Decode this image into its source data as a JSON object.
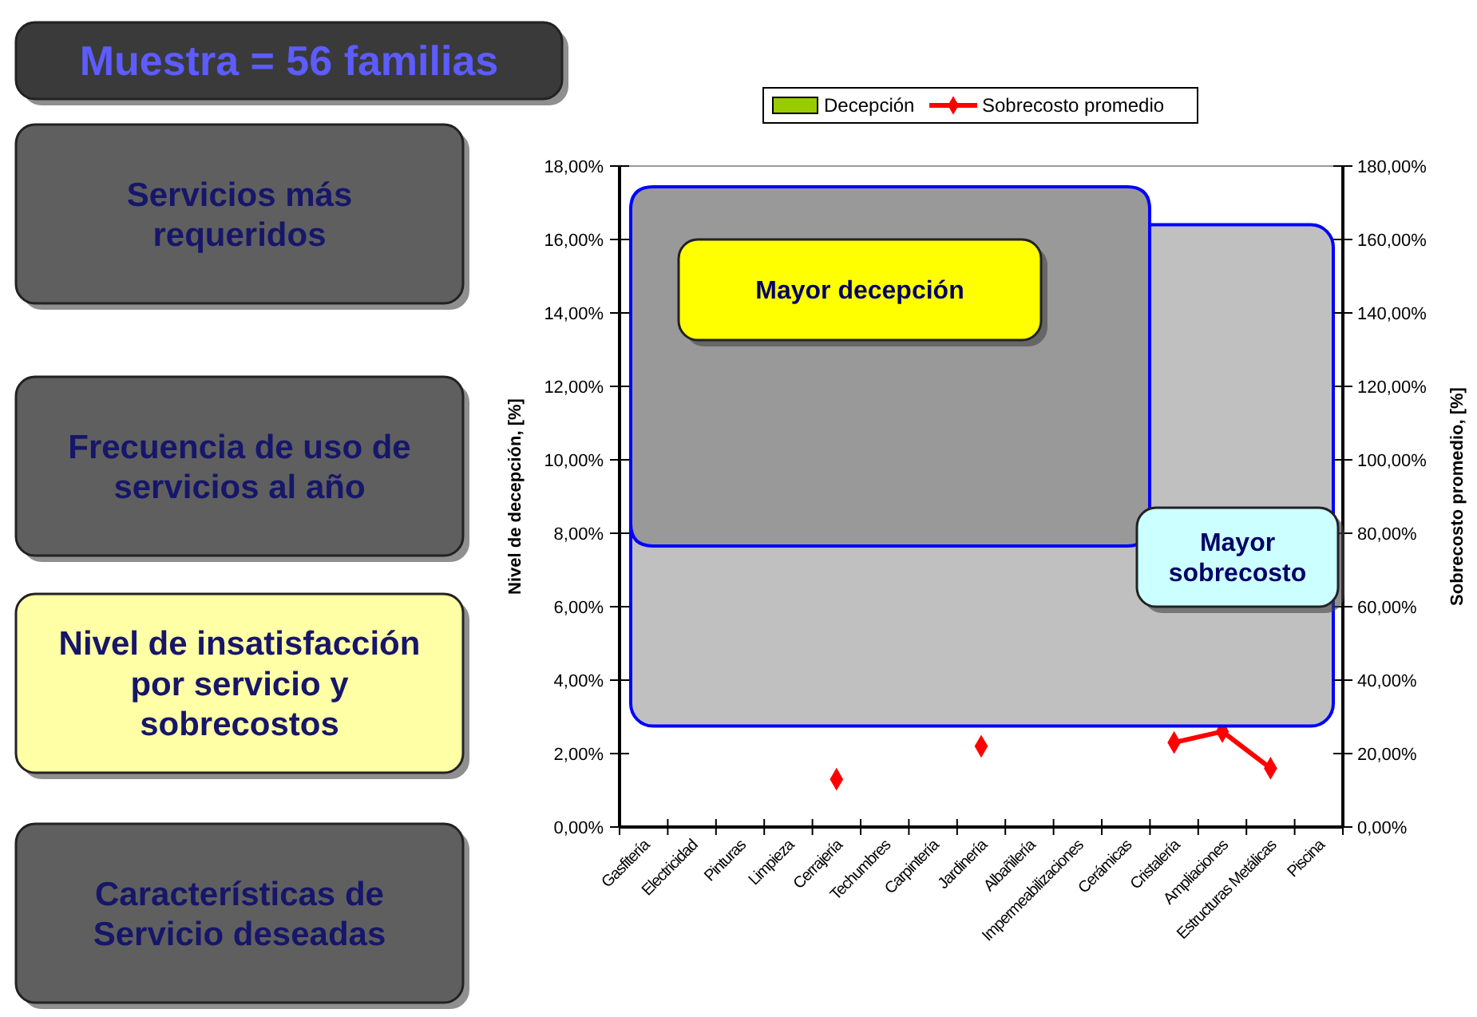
{
  "chart_data": {
    "type": "bar",
    "categories": [
      "Gasfitería",
      "Electricidad",
      "Pinturas",
      "Limpieza",
      "Cerrajería",
      "Techumbres",
      "Carpintería",
      "Jardinería",
      "Albañilería",
      "Impermeabilizaciones",
      "Cerámicas",
      "Cristalería",
      "Ampliaciones",
      "Estructuras Metálicas",
      "Piscina"
    ],
    "series": [
      {
        "name": "Decepción",
        "color": "#99cc00",
        "values": [
          null,
          null,
          null,
          null,
          null,
          null,
          null,
          null,
          null,
          null,
          null,
          null,
          null,
          null,
          null
        ]
      },
      {
        "name": "Sobrecosto promedio",
        "type": "line",
        "axis": "y2",
        "color": "#ff0000",
        "marker": "diamond",
        "values": [
          null,
          null,
          null,
          null,
          13,
          null,
          null,
          22,
          null,
          null,
          null,
          23,
          26,
          16,
          null
        ]
      }
    ],
    "ylabel": "Nivel de decepción, [%]",
    "y2label": "Sobrecosto promedio, [%]",
    "ylim": [
      0,
      18
    ],
    "yticks": [
      {
        "value": 0,
        "label": "0,00%"
      },
      {
        "value": 2,
        "label": "2,00%"
      },
      {
        "value": 4,
        "label": "4,00%"
      },
      {
        "value": 6,
        "label": "6,00%"
      },
      {
        "value": 8,
        "label": "8,00%"
      },
      {
        "value": 10,
        "label": "10,00%"
      },
      {
        "value": 12,
        "label": "12,00%"
      },
      {
        "value": 14,
        "label": "14,00%"
      },
      {
        "value": 16,
        "label": "16,00%"
      },
      {
        "value": 18,
        "label": "18,00%"
      }
    ],
    "y2lim": [
      0,
      180
    ],
    "y2ticks": [
      {
        "value": 0,
        "label": "0,00%"
      },
      {
        "value": 20,
        "label": "20,00%"
      },
      {
        "value": 40,
        "label": "40,00%"
      },
      {
        "value": 60,
        "label": "60,00%"
      },
      {
        "value": 80,
        "label": "80,00%"
      },
      {
        "value": 100,
        "label": "100,00%"
      },
      {
        "value": 120,
        "label": "120,00%"
      },
      {
        "value": 140,
        "label": "140,00%"
      },
      {
        "value": 160,
        "label": "160,00%"
      },
      {
        "value": 180,
        "label": "180,00%"
      }
    ],
    "legend": "top",
    "annotations": [
      "Muestra = 56 familias",
      "Servicios más requeridos",
      "Frecuencia de uso de servicios al año",
      "Nivel de insatisfacción por servicio y sobrecostos",
      "Características de Servicio deseadas",
      "Mayor decepción"
    ],
    "bands": [
      {
        "axis": "y",
        "from": 2.75,
        "to": 16.4,
        "color": "#c0c0c0",
        "label": "Mayor sobrecosto"
      }
    ]
  }
}
